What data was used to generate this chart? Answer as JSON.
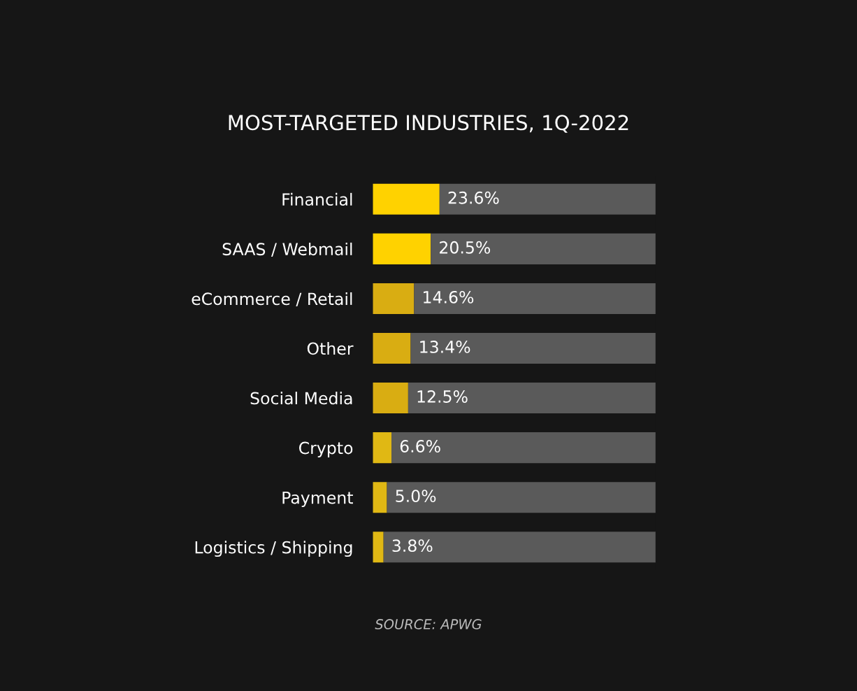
{
  "chart_data": {
    "type": "bar",
    "orientation": "horizontal",
    "stacked": true,
    "title": "MOST-TARGETED INDUSTRIES, 1Q-2022",
    "categories": [
      "Financial",
      "SAAS / Webmail",
      "eCommerce / Retail",
      "Other",
      "Social Media",
      "Crypto",
      "Payment",
      "Logistics / Shipping"
    ],
    "series": [
      {
        "colors": [
          "#ffd200",
          "#ffd200",
          "#d9ad12",
          "#d9ad12",
          "#d9ad12",
          "#e0b814",
          "#e0b814",
          "#e0b814"
        ],
        "values": [
          23.6,
          20.5,
          14.6,
          13.4,
          12.5,
          6.6,
          5.0,
          3.8
        ],
        "value_labels": [
          "23.6%",
          "20.5%",
          "14.6%",
          "13.4%",
          "12.5%",
          "6.6%",
          "5.0%",
          "3.8%"
        ]
      },
      {
        "color": "#5a5a5a",
        "values": [
          76.4,
          79.5,
          85.4,
          86.6,
          87.5,
          93.4,
          95.0,
          96.2
        ]
      }
    ],
    "grid": false,
    "tick_labels": "y",
    "annotations": [
      "SOURCE: APWG"
    ]
  }
}
